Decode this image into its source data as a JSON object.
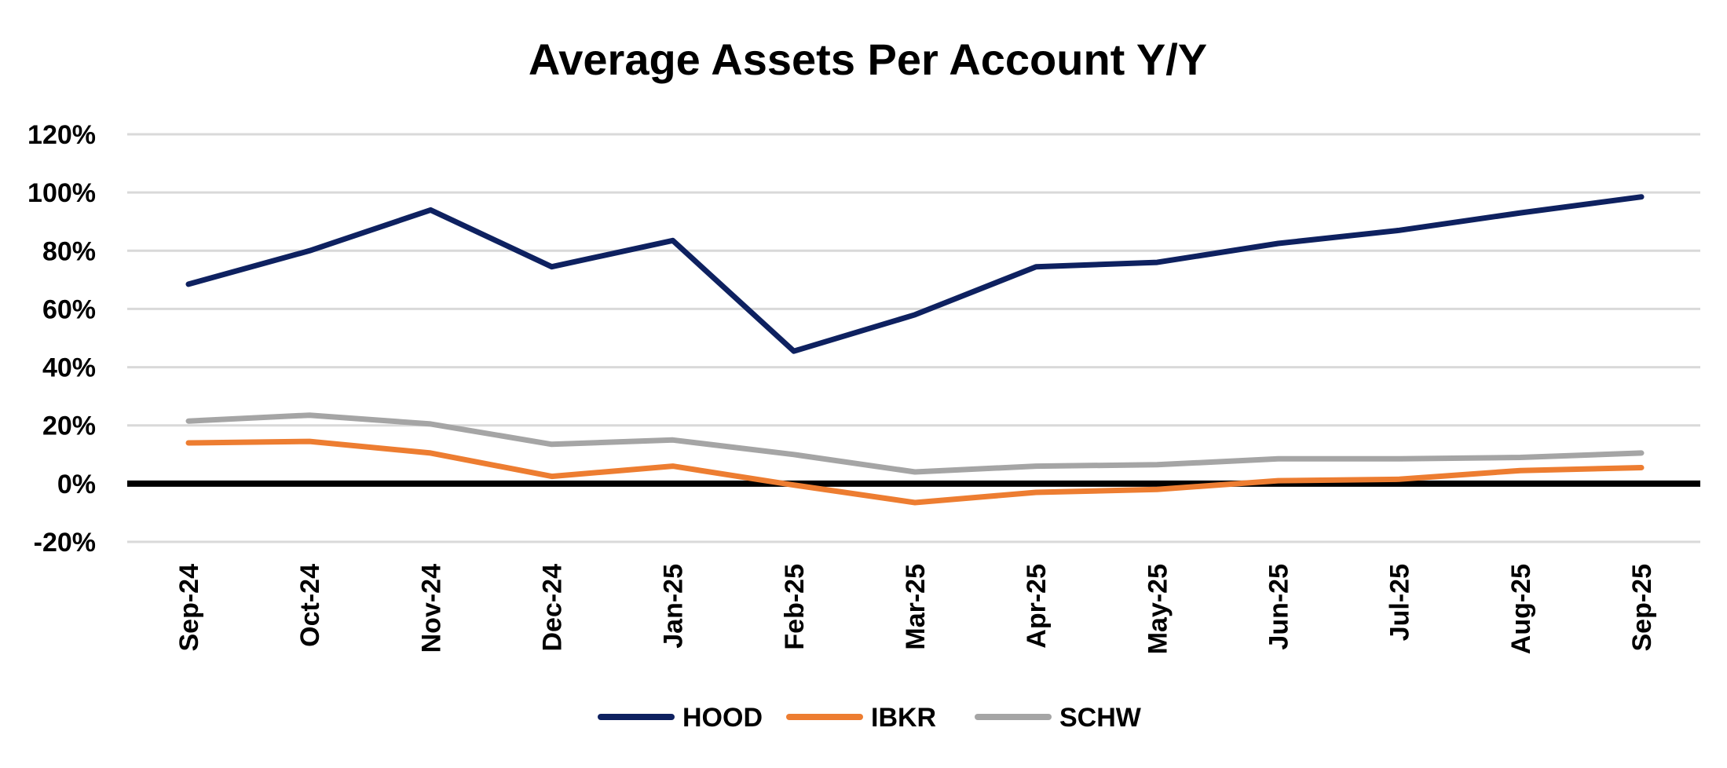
{
  "chart_data": {
    "type": "line",
    "title": "Average Assets Per Account Y/Y",
    "xlabel": "",
    "ylabel": "",
    "categories": [
      "Sep-24",
      "Oct-24",
      "Nov-24",
      "Dec-24",
      "Jan-25",
      "Feb-25",
      "Mar-25",
      "Apr-25",
      "May-25",
      "Jun-25",
      "Jul-25",
      "Aug-25",
      "Sep-25"
    ],
    "ylim": [
      -20,
      120
    ],
    "yticks": [
      -20,
      0,
      20,
      40,
      60,
      80,
      100,
      120
    ],
    "ytick_format": "%",
    "grid": true,
    "zero_line": true,
    "legend_position": "bottom",
    "series": [
      {
        "name": "HOOD",
        "color": "#0e2160",
        "values": [
          68.5,
          80,
          94,
          74.5,
          83.5,
          45.5,
          58,
          74.5,
          76,
          82.5,
          87,
          93,
          98.5
        ]
      },
      {
        "name": "IBKR",
        "color": "#ed7d31",
        "values": [
          14,
          14.5,
          10.5,
          2.5,
          6,
          -0.5,
          -6.5,
          -3,
          -2,
          1,
          1.5,
          4.5,
          5.5
        ]
      },
      {
        "name": "SCHW",
        "color": "#a5a5a5",
        "values": [
          21.5,
          23.5,
          20.5,
          13.5,
          15,
          10,
          4,
          6,
          6.5,
          8.5,
          8.5,
          9,
          10.5
        ]
      }
    ]
  }
}
